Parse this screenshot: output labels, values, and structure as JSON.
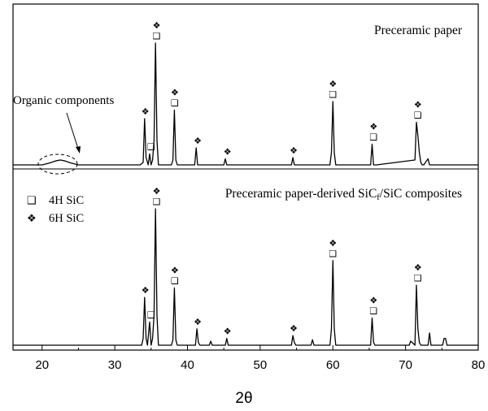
{
  "chart_data": {
    "type": "line",
    "xlabel": "2θ",
    "xlim": [
      16,
      80
    ],
    "x_ticks": [
      20,
      30,
      40,
      50,
      60,
      70,
      80
    ],
    "legend": {
      "placement": "top-left",
      "entries": [
        {
          "symbol": "❑",
          "label": "4H SiC"
        },
        {
          "symbol": "❖",
          "label": "6H SiC"
        }
      ]
    },
    "panels": [
      {
        "title": "Preceramic paper",
        "annotation": {
          "text": "Organic components",
          "x": 22.5
        },
        "series": {
          "x": [
            16,
            20.0,
            21.0,
            22.0,
            22.5,
            23.0,
            24.0,
            25.0,
            33.5,
            33.9,
            34.1,
            34.3,
            34.6,
            34.8,
            35.0,
            35.2,
            35.4,
            35.6,
            35.8,
            36.0,
            36.2,
            37.8,
            38.0,
            38.2,
            38.4,
            38.6,
            41.0,
            41.2,
            41.4,
            41.6,
            41.8,
            45.0,
            45.2,
            45.4,
            45.6,
            45.8,
            54.3,
            54.5,
            54.7,
            54.9,
            55.1,
            59.6,
            59.8,
            60.0,
            60.2,
            60.4,
            65.2,
            65.4,
            65.6,
            65.8,
            66.0,
            71.3,
            71.5,
            71.7,
            71.9,
            72.1,
            72.3,
            72.5,
            73.1,
            73.3,
            73.5,
            80
          ],
          "y": [
            0,
            0,
            1.5,
            3.5,
            4,
            3.5,
            1.5,
            0,
            0,
            2,
            38,
            6,
            0,
            9,
            0,
            4,
            20,
            100,
            20,
            0,
            0,
            0,
            4,
            45,
            4,
            0,
            0,
            14,
            0,
            0,
            0,
            0,
            5,
            0,
            0,
            0,
            0,
            6,
            0,
            0,
            0,
            0,
            10,
            52,
            10,
            0,
            0,
            17,
            0,
            0,
            0,
            4,
            35,
            24,
            10,
            2,
            0,
            0,
            5,
            0,
            0,
            0
          ]
        },
        "markers": [
          {
            "x": 34.2,
            "symbols": [
              "❖"
            ]
          },
          {
            "x": 35.0,
            "symbols": [
              "❑"
            ]
          },
          {
            "x": 35.75,
            "symbols": [
              "❖",
              "❑"
            ]
          },
          {
            "x": 38.25,
            "symbols": [
              "❖",
              "❑"
            ]
          },
          {
            "x": 41.4,
            "symbols": [
              "❖"
            ]
          },
          {
            "x": 45.5,
            "symbols": [
              "❖"
            ]
          },
          {
            "x": 54.6,
            "symbols": [
              "❖"
            ]
          },
          {
            "x": 60.0,
            "symbols": [
              "❖",
              "❑"
            ]
          },
          {
            "x": 65.6,
            "symbols": [
              "❖",
              "❑"
            ]
          },
          {
            "x": 71.7,
            "symbols": [
              "❖",
              "❑"
            ]
          }
        ]
      },
      {
        "title": "Preceramic paper-derived SiC",
        "title_sub": "f",
        "title_tail": "/SiC composites",
        "series": {
          "x": [
            16,
            33.7,
            33.9,
            34.1,
            34.3,
            34.5,
            34.8,
            35.0,
            35.2,
            35.4,
            35.6,
            35.8,
            36.0,
            36.2,
            37.8,
            38.0,
            38.2,
            38.4,
            38.6,
            41.1,
            41.3,
            41.5,
            41.7,
            43.0,
            43.2,
            43.4,
            45.2,
            45.4,
            45.6,
            54.3,
            54.5,
            54.7,
            54.9,
            57.0,
            57.2,
            57.4,
            59.6,
            59.8,
            60.0,
            60.2,
            60.4,
            65.2,
            65.4,
            65.6,
            65.8,
            66.0,
            70.5,
            70.7,
            70.9,
            71.3,
            71.5,
            71.7,
            71.9,
            72.1,
            72.3,
            73.1,
            73.3,
            73.5,
            75.1,
            75.3,
            75.5,
            75.7,
            80
          ],
          "y": [
            0,
            0,
            5,
            35,
            5,
            0,
            17,
            0,
            5,
            22,
            100,
            22,
            0,
            0,
            0,
            4,
            42,
            4,
            0,
            0,
            12,
            2,
            0,
            0,
            3,
            0,
            0,
            5,
            0,
            0,
            7,
            2,
            0,
            0,
            4,
            0,
            0,
            12,
            62,
            12,
            0,
            0,
            20,
            2,
            0,
            0,
            0,
            3,
            2,
            0,
            44,
            12,
            2,
            0,
            0,
            0,
            9,
            0,
            0,
            5,
            5,
            0,
            0
          ]
        },
        "markers": [
          {
            "x": 34.2,
            "symbols": [
              "❖"
            ]
          },
          {
            "x": 35.0,
            "symbols": [
              "❑"
            ]
          },
          {
            "x": 35.75,
            "symbols": [
              "❖",
              "❑"
            ]
          },
          {
            "x": 38.25,
            "symbols": [
              "❖",
              "❑"
            ]
          },
          {
            "x": 41.4,
            "symbols": [
              "❖"
            ]
          },
          {
            "x": 45.5,
            "symbols": [
              "❖"
            ]
          },
          {
            "x": 54.6,
            "symbols": [
              "❖"
            ]
          },
          {
            "x": 60.0,
            "symbols": [
              "❖",
              "❑"
            ]
          },
          {
            "x": 65.6,
            "symbols": [
              "❖",
              "❑"
            ]
          },
          {
            "x": 71.7,
            "symbols": [
              "❖",
              "❑"
            ]
          }
        ]
      }
    ]
  }
}
